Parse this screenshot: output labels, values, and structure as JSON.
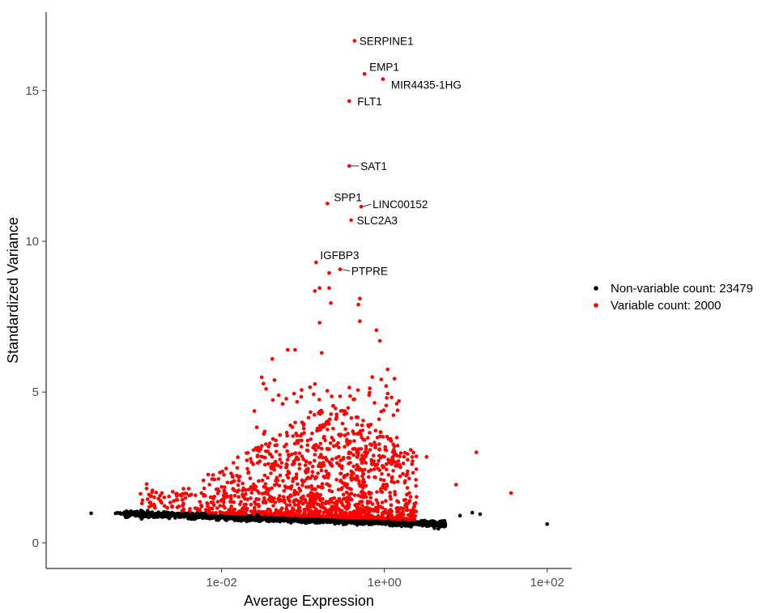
{
  "chart_data": {
    "type": "scatter",
    "xlabel": "Average Expression",
    "ylabel": "Standardized Variance",
    "x_scale": "log10",
    "xlim": [
      7e-05,
      200
    ],
    "ylim": [
      -0.85,
      17.6
    ],
    "x_ticks": [
      {
        "value": 0.01,
        "label": "1e-02"
      },
      {
        "value": 1,
        "label": "1e+00"
      },
      {
        "value": 100,
        "label": "1e+02"
      }
    ],
    "y_ticks": [
      {
        "value": 0,
        "label": "0"
      },
      {
        "value": 5,
        "label": "5"
      },
      {
        "value": 10,
        "label": "10"
      },
      {
        "value": 15,
        "label": "15"
      }
    ],
    "grid": false,
    "legend_position": "right",
    "series": [
      {
        "name": "Non-variable count: 23479",
        "color": "#000000"
      },
      {
        "name": "Variable count: 2000",
        "color": "#ff0000"
      }
    ],
    "labeled_points": [
      {
        "gene": "SERPINE1",
        "x": 0.43,
        "y": 16.65
      },
      {
        "gene": "EMP1",
        "x": 0.57,
        "y": 15.55
      },
      {
        "gene": "MIR4435-1HG",
        "x": 0.96,
        "y": 15.38
      },
      {
        "gene": "FLT1",
        "x": 0.37,
        "y": 14.65
      },
      {
        "gene": "SAT1",
        "x": 0.37,
        "y": 12.5
      },
      {
        "gene": "SPP1",
        "x": 0.2,
        "y": 11.25
      },
      {
        "gene": "LINC00152",
        "x": 0.52,
        "y": 11.15
      },
      {
        "gene": "SLC2A3",
        "x": 0.39,
        "y": 10.7
      },
      {
        "gene": "IGFBP3",
        "x": 0.145,
        "y": 9.3
      },
      {
        "gene": "PTPRE",
        "x": 0.285,
        "y": 9.07
      }
    ],
    "outlier_points": [
      {
        "series": 1,
        "x": 0.00025,
        "y": 0.98
      },
      {
        "series": 1,
        "x": 0.0005,
        "y": 0.98
      },
      {
        "series": 1,
        "x": 100,
        "y": 0.62
      },
      {
        "series": 1,
        "x": 15,
        "y": 0.95
      },
      {
        "series": 1,
        "x": 12,
        "y": 1.0
      },
      {
        "series": 1,
        "x": 8.5,
        "y": 0.9
      },
      {
        "series": 2,
        "x": 13.5,
        "y": 3.0
      },
      {
        "series": 2,
        "x": 36,
        "y": 1.65
      },
      {
        "series": 2,
        "x": 7.6,
        "y": 1.93
      },
      {
        "series": 2,
        "x": 0.5,
        "y": 8.1
      },
      {
        "series": 2,
        "x": 0.48,
        "y": 7.9
      },
      {
        "series": 2,
        "x": 0.5,
        "y": 7.35
      },
      {
        "series": 2,
        "x": 0.8,
        "y": 7.05
      },
      {
        "series": 2,
        "x": 0.88,
        "y": 6.7
      },
      {
        "series": 2,
        "x": 0.16,
        "y": 7.3
      },
      {
        "series": 2,
        "x": 0.14,
        "y": 8.35
      },
      {
        "series": 2,
        "x": 0.16,
        "y": 8.45
      },
      {
        "series": 2,
        "x": 0.21,
        "y": 8.45
      },
      {
        "series": 2,
        "x": 0.21,
        "y": 8.95
      },
      {
        "series": 2,
        "x": 0.22,
        "y": 7.95
      },
      {
        "series": 2,
        "x": 0.065,
        "y": 6.4
      },
      {
        "series": 2,
        "x": 0.08,
        "y": 6.4
      },
      {
        "series": 2,
        "x": 0.042,
        "y": 6.1
      },
      {
        "series": 2,
        "x": 0.17,
        "y": 6.3
      },
      {
        "series": 2,
        "x": 1.1,
        "y": 5.75
      },
      {
        "series": 2,
        "x": 1.05,
        "y": 5.2
      },
      {
        "series": 2,
        "x": 1.1,
        "y": 4.95
      },
      {
        "series": 2,
        "x": 3.3,
        "y": 2.85
      },
      {
        "series": 2,
        "x": 0.0012,
        "y": 1.95
      },
      {
        "series": 2,
        "x": 0.0012,
        "y": 1.8
      }
    ]
  }
}
